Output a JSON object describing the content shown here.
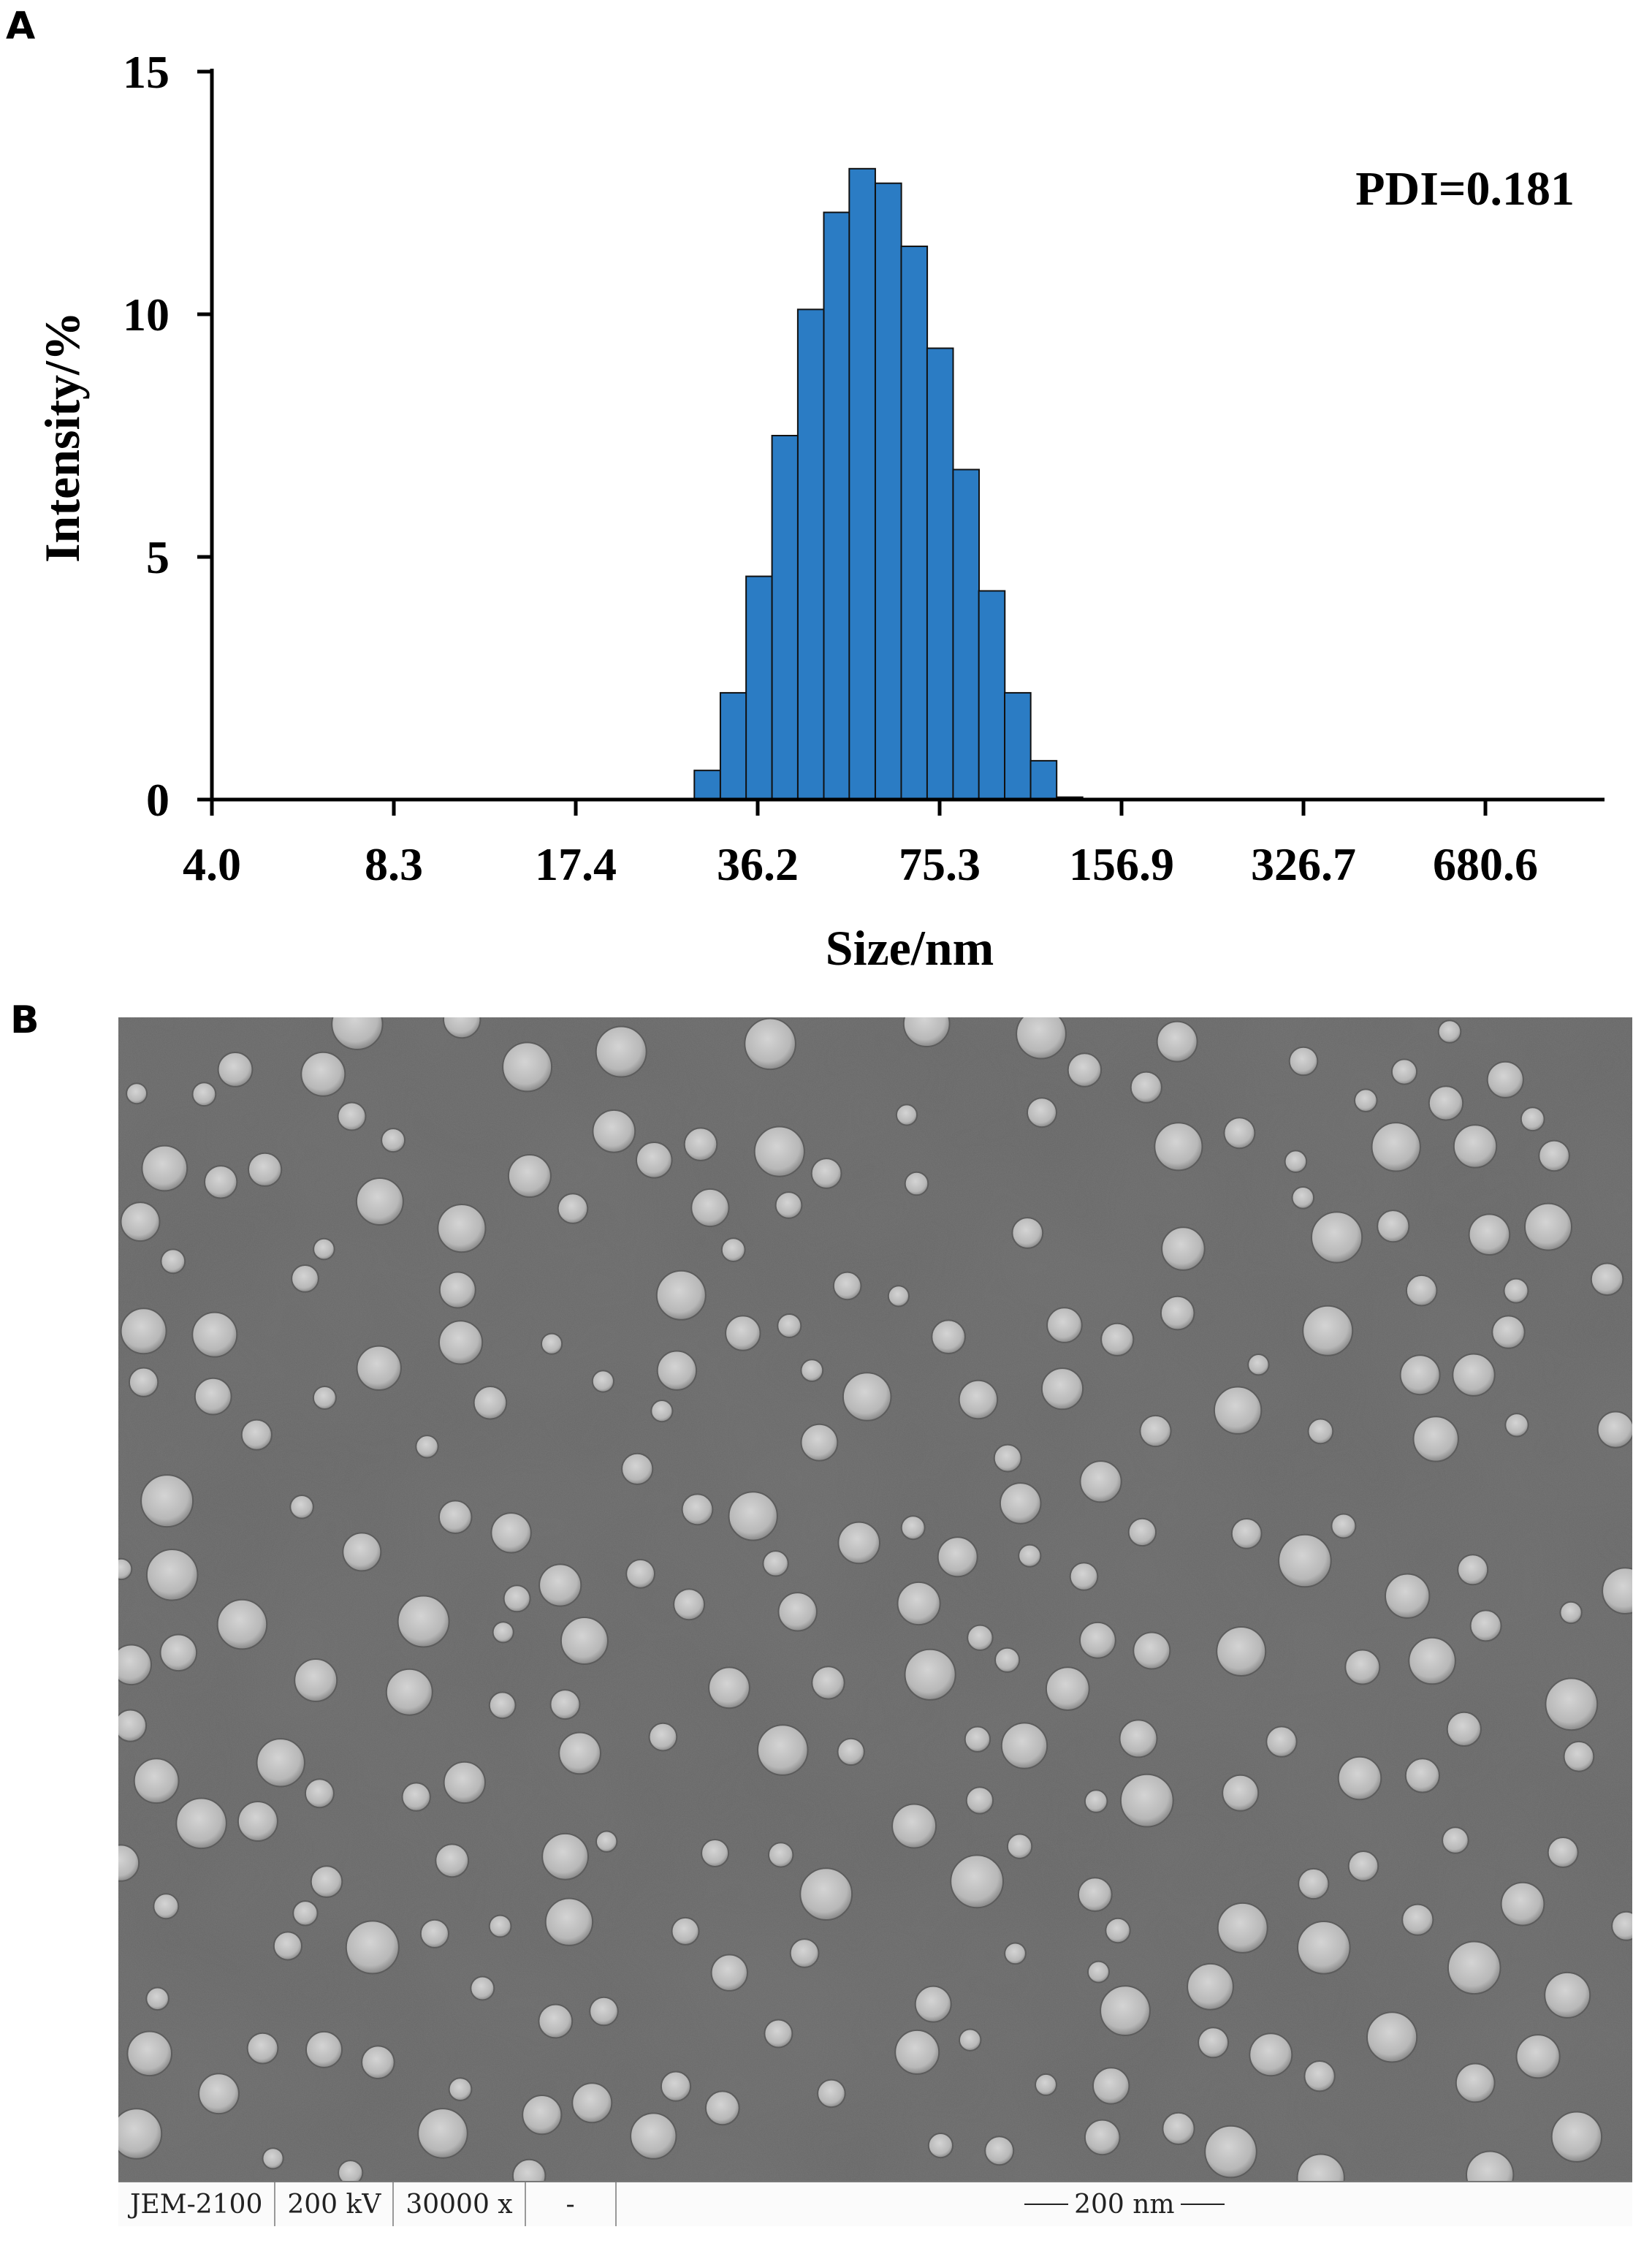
{
  "panels": {
    "a_letter": "A",
    "b_letter": "B"
  },
  "chart_data": {
    "type": "bar",
    "xlabel": "Size/nm",
    "ylabel": "Intensity/%",
    "ylim": [
      0,
      15
    ],
    "yticks": [
      "0",
      "5",
      "10",
      "15"
    ],
    "xtick_labels": [
      "4.0",
      "8.3",
      "17.4",
      "36.2",
      "75.3",
      "156.9",
      "326.7",
      "680.6"
    ],
    "x_scale": "log",
    "annotation": "PDI=0.181",
    "bar_color": "#2b7cc4",
    "series": [
      {
        "bins": [
          [
            28.0,
            0.6
          ],
          [
            31.1,
            2.2
          ],
          [
            34.5,
            4.6
          ],
          [
            38.3,
            7.5
          ],
          [
            42.5,
            10.1
          ],
          [
            47.2,
            12.1
          ],
          [
            52.3,
            13.0
          ],
          [
            58.1,
            12.7
          ],
          [
            64.5,
            11.4
          ],
          [
            71.6,
            9.3
          ],
          [
            79.5,
            6.8
          ],
          [
            88.2,
            4.3
          ],
          [
            97.9,
            2.2
          ],
          [
            108.7,
            0.8
          ],
          [
            120.7,
            0.05
          ]
        ]
      }
    ],
    "bins_axis_note": ""
  },
  "tem": {
    "instrument": "JEM-2100",
    "voltage": "200 kV",
    "magnification": "30000 x",
    "dash": "-",
    "scale_bar": "200 nm"
  }
}
